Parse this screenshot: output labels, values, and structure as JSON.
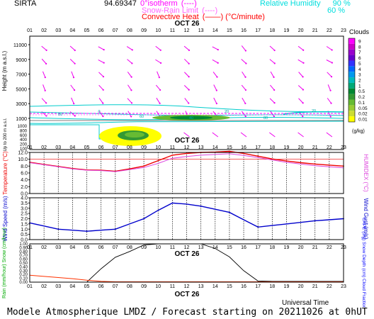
{
  "header": {
    "station": "SIRTA",
    "coords": "94.69347",
    "legend": [
      {
        "label": "0°isotherm",
        "sym": "(----)",
        "color": "#ff00ff"
      },
      {
        "label": "Snow-Rain Limit",
        "sym": "(----)",
        "color": "#ff66ff"
      },
      {
        "label": "Convective Heat",
        "sym": "(——)",
        "unit": "(°C/minute)",
        "color": "#ff0000"
      }
    ],
    "rh_legend": [
      {
        "label": "Relative Humidity",
        "value": "90 %"
      },
      {
        "label": "",
        "value": "60 %"
      }
    ],
    "rh_color": "#00dddd"
  },
  "hours": [
    "01",
    "02",
    "03",
    "04",
    "05",
    "06",
    "07",
    "08",
    "09",
    "10",
    "11",
    "12",
    "13",
    "14",
    "15",
    "16",
    "17",
    "18",
    "19",
    "20",
    "21",
    "22",
    "23"
  ],
  "date_label": "OCT 26",
  "footer": {
    "title": "Modele Atmospherique LMDZ / Forecast starting on 20211026 at 0hUT",
    "universal_time": "Universal Time"
  },
  "colorbar": {
    "title": "Clouds",
    "unit": "(g/kg)",
    "ticks": [
      "9",
      "8",
      "7",
      "6",
      "5",
      "4",
      "3",
      "2",
      "1",
      "0.5",
      "0.2",
      "0.1",
      "0.05",
      "0.02",
      "0.01"
    ],
    "colors": [
      "#ff00ff",
      "#cc00cc",
      "#9900cc",
      "#6600cc",
      "#3333ff",
      "#0066ff",
      "#0099ee",
      "#00bbbb",
      "#00aa77",
      "#008833",
      "#339933",
      "#66bb33",
      "#99cc33",
      "#ccdd33",
      "#ffff00"
    ]
  },
  "chart_data": [
    {
      "type": "heatmap",
      "title": "",
      "ylabel": "Height (m a.s.l.)",
      "yticks_upper": [
        "11000",
        "9000",
        "7000",
        "5000",
        "3000",
        "1000"
      ],
      "yticks_lower": [
        "1000",
        "800",
        "600",
        "400",
        "200",
        "100"
      ],
      "ylabel_lower": "Up to 200 m a.s.l.",
      "contour_labels": [
        "80",
        "60",
        "40",
        "20",
        "0",
        "80",
        "20"
      ]
    },
    {
      "type": "line",
      "ylabel": "Temperature (°C)",
      "ylabel_right": "HUMIDEX (°C)",
      "yticks": [
        "12.0",
        "10.0",
        "8.0",
        "6.0",
        "4.0",
        "2.0",
        "0.0"
      ],
      "ylim": [
        0,
        12
      ],
      "series": [
        {
          "color": "#ee0000",
          "values": [
            9.1,
            8.5,
            7.9,
            7.3,
            6.9,
            6.8,
            6.5,
            7.2,
            8.0,
            9.6,
            11.2,
            11.7,
            12.0,
            12.1,
            12.3,
            11.7,
            10.9,
            10.1,
            9.5,
            9.0,
            8.6,
            8.3,
            8.0
          ]
        },
        {
          "color": "#dd44dd",
          "values": [
            9.0,
            8.4,
            7.8,
            7.2,
            6.8,
            6.7,
            6.4,
            7.0,
            7.6,
            8.8,
            10.3,
            10.8,
            11.2,
            11.4,
            11.6,
            11.1,
            10.5,
            9.8,
            9.1,
            8.6,
            8.1,
            7.8,
            7.5
          ]
        }
      ]
    },
    {
      "type": "line",
      "ylabel": "Wind Speed (m/s)",
      "ylabel_right": "Wind Gust (m/s)",
      "yticks": [
        "4.0",
        "3.5",
        "3.0",
        "2.5",
        "2.0",
        "1.5",
        "1.0",
        "0.5",
        "0.0"
      ],
      "ylim": [
        0,
        4
      ],
      "series": [
        {
          "color": "#0000cc",
          "values": [
            1.6,
            1.3,
            1.0,
            0.9,
            0.8,
            0.9,
            1.0,
            1.5,
            2.0,
            2.8,
            3.5,
            3.4,
            3.2,
            2.9,
            2.6,
            1.9,
            1.2,
            1.35,
            1.5,
            1.65,
            1.8,
            1.9,
            2.0
          ]
        }
      ]
    },
    {
      "type": "line",
      "ylabel": "Rain (mm/hour) Snow (cm/hour)",
      "ylabel_right": "CAPE (J/g) Snow Depth (cm) Cloud Fraction",
      "yticks": [
        "1.00",
        "0.90",
        "0.80",
        "0.70",
        "0.60",
        "0.50",
        "0.40",
        "0.30",
        "0.20",
        "0.10",
        "0.00"
      ],
      "ylim": [
        0,
        1
      ],
      "series": [
        {
          "color": "#000000",
          "values": [
            0,
            0,
            0,
            0,
            0,
            0.35,
            0.65,
            0.8,
            0.97,
            1.0,
            1.0,
            1.0,
            1.0,
            0.88,
            0.66,
            0.3,
            0.03,
            0.02,
            0.02,
            0.02,
            0.02,
            0.02,
            0.02
          ]
        },
        {
          "color": "#ff3300",
          "values": [
            0.18,
            0.15,
            0.12,
            0.09,
            0.05,
            0.02,
            0.01,
            0.01,
            0.01,
            0.01,
            0.01,
            0.01,
            0.01,
            0.01,
            0.01,
            0.01,
            0.01,
            0.01,
            0.01,
            0.01,
            0.01,
            0.01,
            0.01
          ]
        },
        {
          "color": "#0000ff",
          "values": [
            0,
            0,
            0,
            0,
            0,
            0,
            0,
            0,
            0,
            0,
            0,
            0,
            0,
            0,
            0,
            0,
            0,
            0,
            0,
            0,
            0,
            0,
            0
          ]
        }
      ]
    }
  ]
}
